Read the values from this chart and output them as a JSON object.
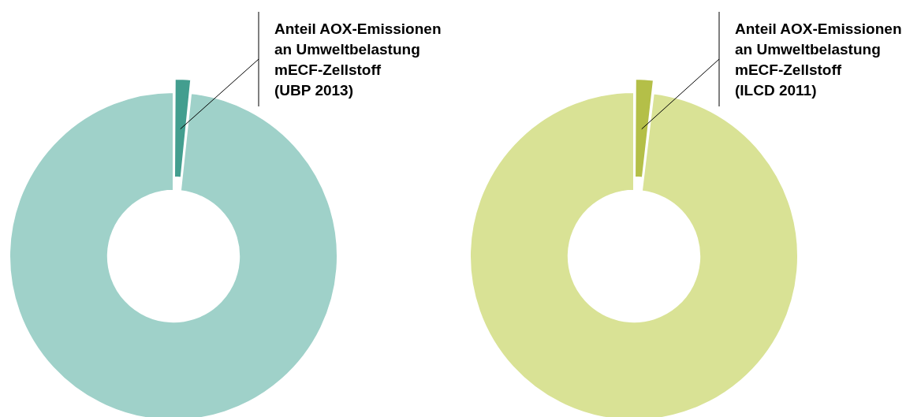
{
  "chart_data": [
    {
      "type": "donut",
      "categories": [
        "Anteil AOX-Emissionen\nan Umweltbelastung\nmECF-Zellstoff\n(UBP 2013)",
        null
      ],
      "values": [
        1.7,
        98.3
      ],
      "colors": [
        "#439e8f",
        "#9fd1c9"
      ]
    },
    {
      "type": "donut",
      "categories": [
        "Anteil AOX-Emissionen\nan Umweltbelastung\nmECF-Zellstoff\n(ILCD 2011)",
        null
      ],
      "values": [
        1.9,
        98.1
      ],
      "colors": [
        "#b4bf48",
        "#d9e295"
      ]
    }
  ]
}
